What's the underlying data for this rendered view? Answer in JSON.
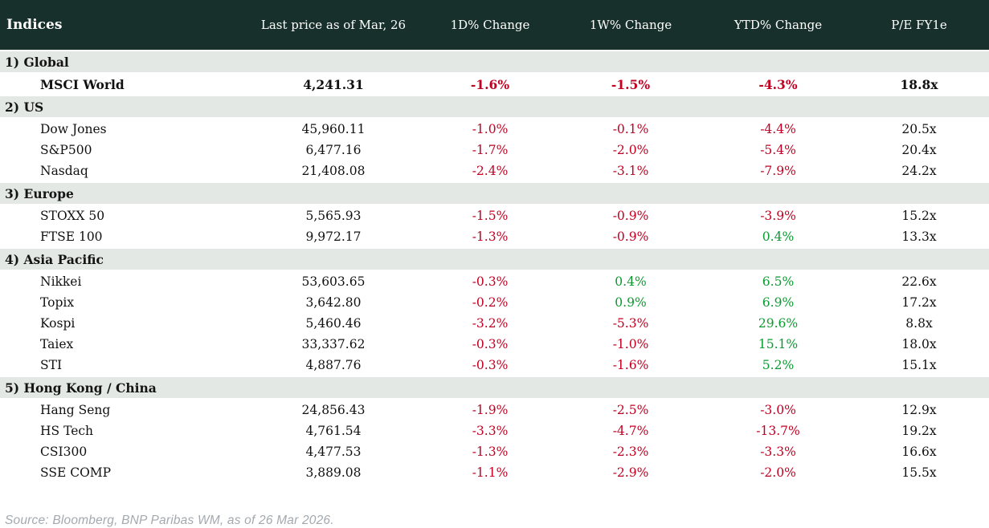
{
  "chart_data": {
    "type": "table",
    "title": "Indices",
    "columns": [
      "Indices",
      "Last price as of Mar, 26",
      "1D% Change",
      "1W% Change",
      "YTD% Change",
      "P/E FY1e"
    ],
    "sections": [
      {
        "label": "1) Global",
        "rows": [
          {
            "name": "MSCI World",
            "bold": true,
            "last_price": "4,241.31",
            "change_1d": "-1.6%",
            "change_1w": "-1.5%",
            "change_ytd": "-4.3%",
            "pe_fy1e": "18.8x"
          }
        ]
      },
      {
        "label": "2) US",
        "rows": [
          {
            "name": "Dow Jones",
            "last_price": "45,960.11",
            "change_1d": "-1.0%",
            "change_1w": "-0.1%",
            "change_ytd": "-4.4%",
            "pe_fy1e": "20.5x"
          },
          {
            "name": "S&P500",
            "last_price": "6,477.16",
            "change_1d": "-1.7%",
            "change_1w": "-2.0%",
            "change_ytd": "-5.4%",
            "pe_fy1e": "20.4x"
          },
          {
            "name": "Nasdaq",
            "last_price": "21,408.08",
            "change_1d": "-2.4%",
            "change_1w": "-3.1%",
            "change_ytd": "-7.9%",
            "pe_fy1e": "24.2x"
          }
        ]
      },
      {
        "label": "3) Europe",
        "rows": [
          {
            "name": "STOXX 50",
            "last_price": "5,565.93",
            "change_1d": "-1.5%",
            "change_1w": "-0.9%",
            "change_ytd": "-3.9%",
            "pe_fy1e": "15.2x"
          },
          {
            "name": "FTSE 100",
            "last_price": "9,972.17",
            "change_1d": "-1.3%",
            "change_1w": "-0.9%",
            "change_ytd": "0.4%",
            "pe_fy1e": "13.3x"
          }
        ]
      },
      {
        "label": "4) Asia Pacific",
        "rows": [
          {
            "name": "Nikkei",
            "last_price": "53,603.65",
            "change_1d": "-0.3%",
            "change_1w": "0.4%",
            "change_ytd": "6.5%",
            "pe_fy1e": "22.6x"
          },
          {
            "name": "Topix",
            "last_price": "3,642.80",
            "change_1d": "-0.2%",
            "change_1w": "0.9%",
            "change_ytd": "6.9%",
            "pe_fy1e": "17.2x"
          },
          {
            "name": "Kospi",
            "last_price": "5,460.46",
            "change_1d": "-3.2%",
            "change_1w": "-5.3%",
            "change_ytd": "29.6%",
            "pe_fy1e": "8.8x"
          },
          {
            "name": "Taiex",
            "last_price": "33,337.62",
            "change_1d": "-0.3%",
            "change_1w": "-1.0%",
            "change_ytd": "15.1%",
            "pe_fy1e": "18.0x"
          },
          {
            "name": "STI",
            "last_price": "4,887.76",
            "change_1d": "-0.3%",
            "change_1w": "-1.6%",
            "change_ytd": "5.2%",
            "pe_fy1e": "15.1x"
          }
        ]
      },
      {
        "label": "5) Hong Kong / China",
        "rows": [
          {
            "name": "Hang Seng",
            "last_price": "24,856.43",
            "change_1d": "-1.9%",
            "change_1w": "-2.5%",
            "change_ytd": "-3.0%",
            "pe_fy1e": "12.9x"
          },
          {
            "name": "HS Tech",
            "last_price": "4,761.54",
            "change_1d": "-3.3%",
            "change_1w": "-4.7%",
            "change_ytd": "-13.7%",
            "pe_fy1e": "19.2x"
          },
          {
            "name": "CSI300",
            "last_price": "4,477.53",
            "change_1d": "-1.3%",
            "change_1w": "-2.3%",
            "change_ytd": "-3.3%",
            "pe_fy1e": "16.6x"
          },
          {
            "name": "SSE COMP",
            "last_price": "3,889.08",
            "change_1d": "-1.1%",
            "change_1w": "-2.9%",
            "change_ytd": "-2.0%",
            "pe_fy1e": "15.5x"
          }
        ]
      }
    ],
    "layout": {
      "legend": "none",
      "grid": "off",
      "section_rows_full_width": true,
      "value_columns_alignment": "center"
    }
  },
  "source_note": "Source: Bloomberg, BNP Paribas WM, as of 26 Mar 2026.",
  "colors": {
    "header_bg": "#18302b",
    "header_text": "#ffffff",
    "section_bg": "#e3e8e5",
    "row_bg": "#ffffff",
    "negative": "#c30022",
    "positive": "#0a9b30",
    "source_text": "#a3a9ae"
  }
}
